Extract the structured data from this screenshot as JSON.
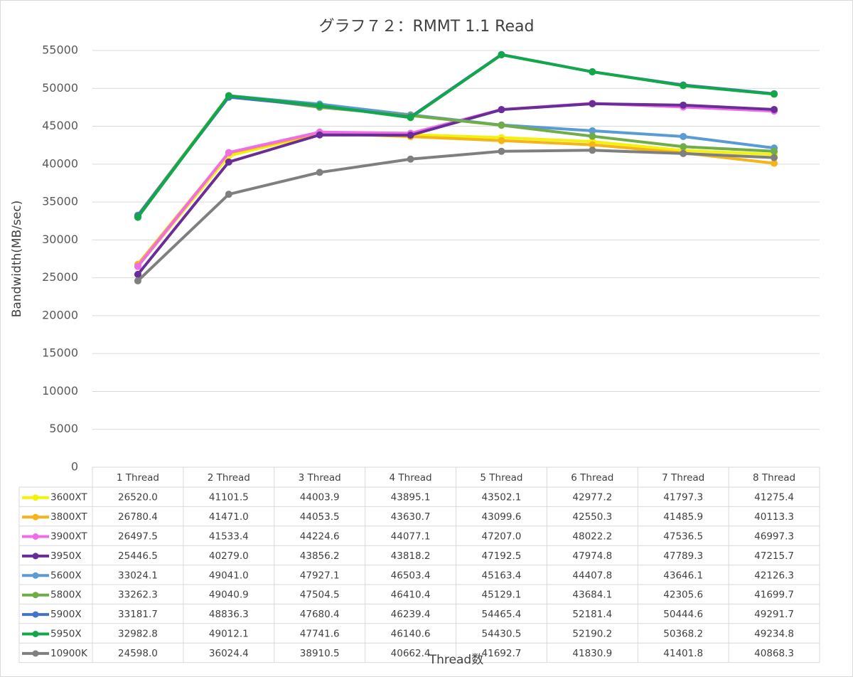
{
  "chart_data": {
    "type": "line",
    "title": "グラフ７２：RMMT 1.1 Read",
    "y_label": "Bandwidth(MB/sec)",
    "x_label": "Thread数",
    "categories": [
      "1 Thread",
      "2 Thread",
      "3 Thread",
      "4 Thread",
      "5 Thread",
      "6 Thread",
      "7 Thread",
      "8 Thread"
    ],
    "ylim": [
      0,
      55000
    ],
    "yticks": [
      0,
      5000,
      10000,
      15000,
      20000,
      25000,
      30000,
      35000,
      40000,
      45000,
      50000,
      55000
    ],
    "grid": true,
    "data_table": true,
    "series": [
      {
        "name": "3600XT",
        "color": "#f2f20a",
        "values": [
          26520.0,
          41101.5,
          44003.9,
          43895.1,
          43502.1,
          42977.2,
          41797.3,
          41275.4
        ],
        "value_labels": [
          "26520.0",
          "41101.5",
          "44003.9",
          "43895.1",
          "43502.1",
          "42977.2",
          "41797.3",
          "41275.4"
        ]
      },
      {
        "name": "3800XT",
        "color": "#f5b41a",
        "values": [
          26780.4,
          41471.0,
          44053.5,
          43630.7,
          43099.6,
          42550.3,
          41485.9,
          40113.3
        ],
        "value_labels": [
          "26780.4",
          "41471.0",
          "44053.5",
          "43630.7",
          "43099.6",
          "42550.3",
          "41485.9",
          "40113.3"
        ]
      },
      {
        "name": "3900XT",
        "color": "#ee6ee8",
        "values": [
          26497.5,
          41533.4,
          44224.6,
          44077.1,
          47207.0,
          48022.2,
          47536.5,
          46997.3
        ],
        "value_labels": [
          "26497.5",
          "41533.4",
          "44224.6",
          "44077.1",
          "47207.0",
          "48022.2",
          "47536.5",
          "46997.3"
        ]
      },
      {
        "name": "3950X",
        "color": "#6a2c96",
        "values": [
          25446.5,
          40279.0,
          43856.2,
          43818.2,
          47192.5,
          47974.8,
          47789.3,
          47215.7
        ],
        "value_labels": [
          "25446.5",
          "40279.0",
          "43856.2",
          "43818.2",
          "47192.5",
          "47974.8",
          "47789.3",
          "47215.7"
        ]
      },
      {
        "name": "5600X",
        "color": "#5b9bd5",
        "values": [
          33024.1,
          49041.0,
          47927.1,
          46503.4,
          45163.4,
          44407.8,
          43646.1,
          42126.3
        ],
        "value_labels": [
          "33024.1",
          "49041.0",
          "47927.1",
          "46503.4",
          "45163.4",
          "44407.8",
          "43646.1",
          "42126.3"
        ]
      },
      {
        "name": "5800X",
        "color": "#70ad47",
        "values": [
          33262.3,
          49040.9,
          47504.5,
          46410.4,
          45129.1,
          43684.1,
          42305.6,
          41699.7
        ],
        "value_labels": [
          "33262.3",
          "49040.9",
          "47504.5",
          "46410.4",
          "45129.1",
          "43684.1",
          "42305.6",
          "41699.7"
        ]
      },
      {
        "name": "5900X",
        "color": "#4472c4",
        "values": [
          33181.7,
          48836.3,
          47680.4,
          46239.4,
          54465.4,
          52181.4,
          50444.6,
          49291.7
        ],
        "value_labels": [
          "33181.7",
          "48836.3",
          "47680.4",
          "46239.4",
          "54465.4",
          "52181.4",
          "50444.6",
          "49291.7"
        ]
      },
      {
        "name": "5950X",
        "color": "#12a84a",
        "values": [
          32982.8,
          49012.1,
          47741.6,
          46140.6,
          54430.5,
          52190.2,
          50368.2,
          49234.8
        ],
        "value_labels": [
          "32982.8",
          "49012.1",
          "47741.6",
          "46140.6",
          "54430.5",
          "52190.2",
          "50368.2",
          "49234.8"
        ]
      },
      {
        "name": "10900K",
        "color": "#7f7f7f",
        "values": [
          24598.0,
          36024.4,
          38910.5,
          40662.4,
          41692.7,
          41830.9,
          41401.8,
          40868.3
        ],
        "value_labels": [
          "24598.0",
          "36024.4",
          "38910.5",
          "40662.4",
          "41692.7",
          "41830.9",
          "41401.8",
          "40868.3"
        ]
      }
    ]
  }
}
